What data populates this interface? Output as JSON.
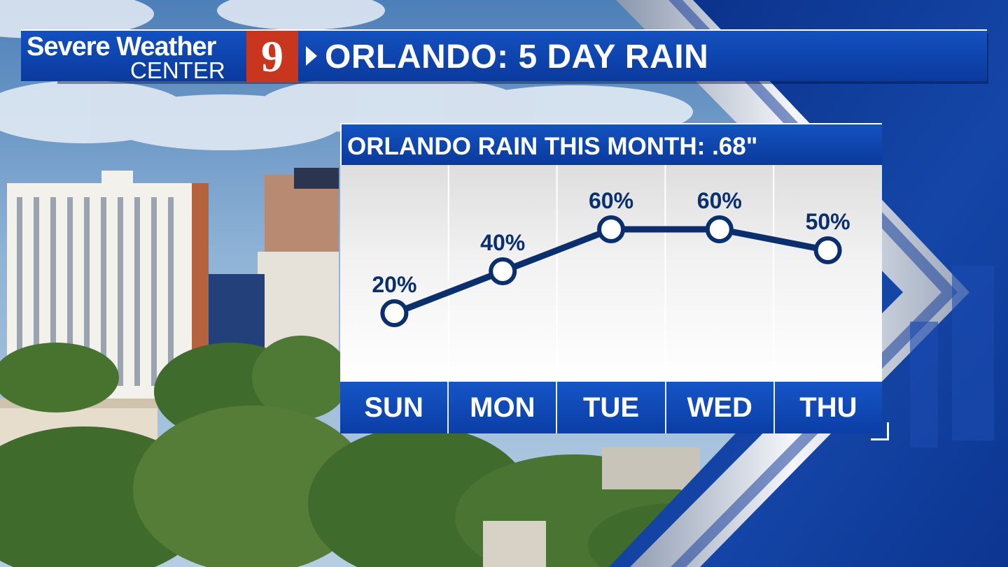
{
  "header": {
    "logo_line1": "Severe Weather",
    "logo_line2": "CENTER",
    "logo_number": "9",
    "title": "ORLANDO: 5 DAY RAIN"
  },
  "card": {
    "title": "ORLANDO RAIN THIS MONTH: .68\""
  },
  "colors": {
    "brand_blue": "#0b3fa8",
    "line_navy": "#0a2f6e",
    "logo_red": "#c8361e"
  },
  "chart_data": {
    "type": "line",
    "title": "ORLANDO RAIN THIS MONTH: .68\"",
    "categories": [
      "SUN",
      "MON",
      "TUE",
      "WED",
      "THU"
    ],
    "series": [
      {
        "values": [
          20,
          40,
          60,
          60,
          50
        ],
        "labels": [
          "20%",
          "40%",
          "60%",
          "60%",
          "50%"
        ]
      }
    ],
    "grid": "vertical",
    "legend": "none"
  }
}
